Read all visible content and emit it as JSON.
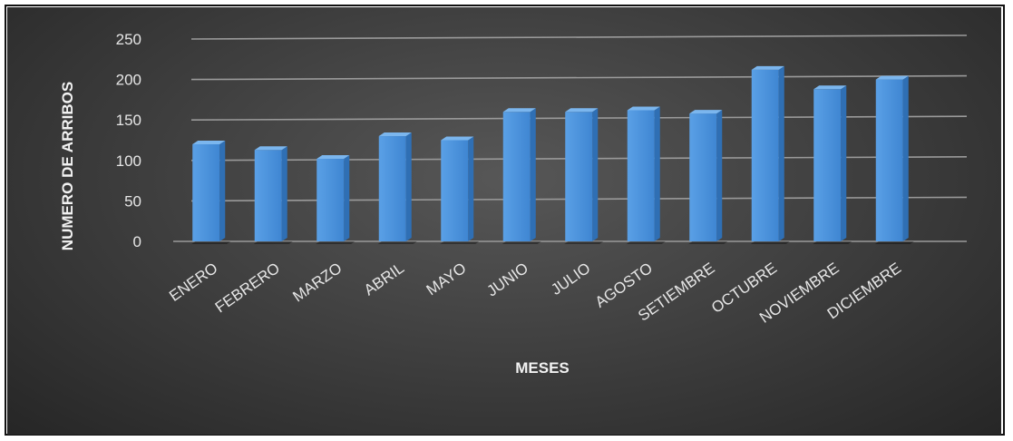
{
  "chart_data": {
    "type": "bar",
    "categories": [
      "ENERO",
      "FEBRERO",
      "MARZO",
      "ABRIL",
      "MAYO",
      "JUNIO",
      "JULIO",
      "AGOSTO",
      "SETIEMBRE",
      "OCTUBRE",
      "NOVIEMBRE",
      "DICIEMBRE"
    ],
    "values": [
      120,
      113,
      102,
      130,
      125,
      160,
      160,
      162,
      158,
      212,
      188,
      200
    ],
    "title": "",
    "xlabel": "MESES",
    "ylabel": "NUMERO DE ARRIBOS",
    "ylim": [
      0,
      250
    ],
    "yticks": [
      "0",
      "50",
      "100",
      "150",
      "200",
      "250"
    ],
    "grid": true,
    "bar_color": "#4a90d9",
    "background_color": "#3a3a3a"
  }
}
